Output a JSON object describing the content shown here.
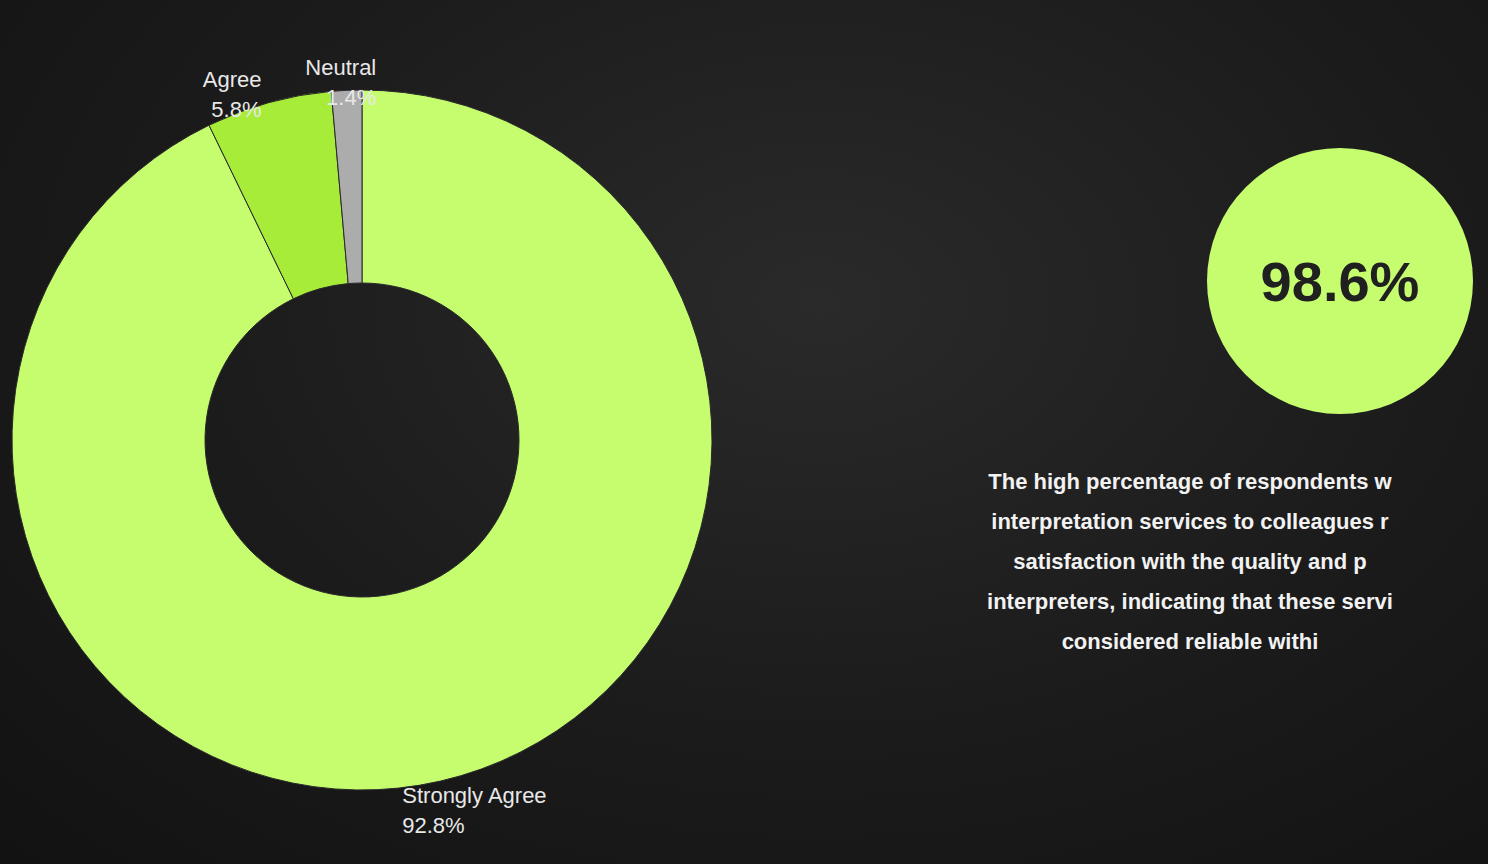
{
  "chart_data": {
    "type": "donut",
    "categories": [
      "Strongly Agree",
      "Agree",
      "Neutral"
    ],
    "values": [
      92.8,
      5.8,
      1.4
    ],
    "value_labels": [
      "92.8%",
      "5.8%",
      "1.4%"
    ],
    "colors": [
      "#c6fd6f",
      "#a6ec38",
      "#acacac"
    ],
    "data_labels": true,
    "annotations": {
      "highlight": "98.6%",
      "text": [
        "The high percentage of respondents w",
        "interpretation services to colleagues r",
        "satisfaction with the quality and p",
        "interpreters, indicating that these servi",
        "considered reliable withi"
      ]
    }
  }
}
